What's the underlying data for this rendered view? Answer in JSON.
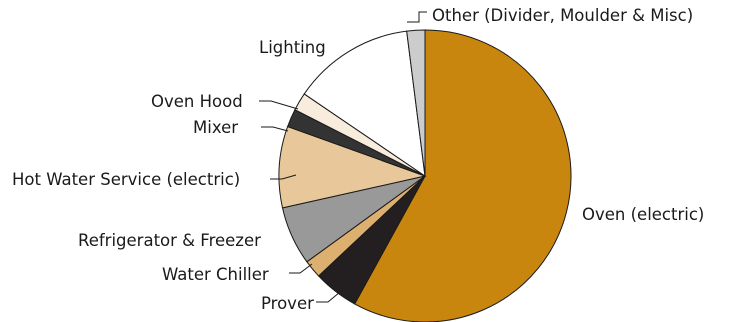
{
  "chart_data": {
    "type": "pie",
    "title": "",
    "start_angle_deg": 0,
    "direction": "clockwise",
    "slices": [
      {
        "label": "Oven (electric)",
        "value": 58.0,
        "color": "#c8860f"
      },
      {
        "label": "Prover",
        "value": 5.0,
        "color": "#231f20"
      },
      {
        "label": "Water Chiller",
        "value": 2.0,
        "color": "#ddb070"
      },
      {
        "label": "Refrigerator & Freezer",
        "value": 6.5,
        "color": "#999999"
      },
      {
        "label": "Hot Water Service (electric)",
        "value": 9.0,
        "color": "#e8c89a"
      },
      {
        "label": "Mixer",
        "value": 2.0,
        "color": "#333333"
      },
      {
        "label": "Oven Hood",
        "value": 2.0,
        "color": "#f8ecdc"
      },
      {
        "label": "Lighting",
        "value": 13.5,
        "color": "#ffffff"
      },
      {
        "label": "Other (Divider, Moulder & Misc)",
        "value": 2.0,
        "color": "#cccccc"
      }
    ]
  }
}
